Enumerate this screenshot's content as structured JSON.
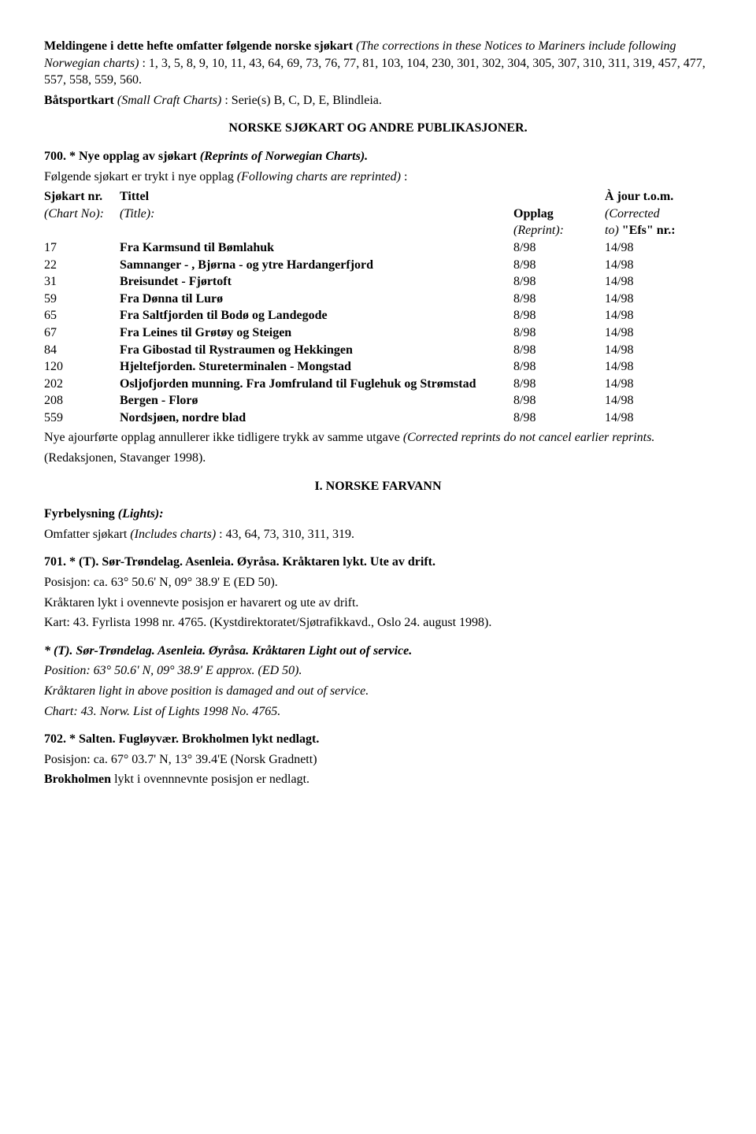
{
  "intro": {
    "lead_bold": "Meldingene i dette hefte omfatter følgende norske sjøkart",
    "lead_italic": "(The corrections in these Notices to Mariners include following Norwegian charts)",
    "chart_numbers": ": 1, 3, 5, 8, 9, 10, 11, 43, 64, 69, 73, 76, 77, 81, 103, 104, 230, 301, 302, 304, 305, 307, 310, 311, 319, 457, 477, 557, 558, 559, 560.",
    "boat_bold": "Båtsportkart",
    "boat_italic": "(Small Craft Charts)",
    "boat_rest": ": Serie(s) B, C, D, E, Blindleia."
  },
  "heading_pub": "NORSKE SJØKART OG ANDRE PUBLIKASJONER.",
  "reprints": {
    "title_bold": "700. * Nye opplag av sjøkart",
    "title_italic": "(Reprints of Norwegian Charts).",
    "sub_line_a": "Følgende sjøkart er trykt i nye opplag ",
    "sub_line_a_italic": "(Following charts are reprinted)",
    "sub_line_a_tail": ":",
    "hdr": {
      "no_bold": "Sjøkart nr.",
      "no_italic": "(Chart No):",
      "title_bold": "Tittel",
      "title_italic": "(Title):",
      "opplag_bold": "Opplag",
      "opplag_italic": "(Reprint):",
      "ajour_bold_l1": "À jour t.o.m.",
      "ajour_italic_l1": "(Corrected",
      "ajour_italic_l2": "to)",
      "ajour_bold_l2": "\"Efs\" nr.:"
    },
    "rows": [
      {
        "no": "17",
        "title": "Fra Karmsund til Bømlahuk",
        "opplag": "8/98",
        "ajour": "14/98"
      },
      {
        "no": "22",
        "title": "Samnanger - , Bjørna - og ytre Hardangerfjord",
        "opplag": "8/98",
        "ajour": "14/98"
      },
      {
        "no": "31",
        "title": "Breisundet - Fjørtoft",
        "opplag": "8/98",
        "ajour": "14/98"
      },
      {
        "no": "59",
        "title": "Fra Dønna til Lurø",
        "opplag": "8/98",
        "ajour": "14/98"
      },
      {
        "no": "65",
        "title": "Fra Saltfjorden til Bodø og Landegode",
        "opplag": "8/98",
        "ajour": "14/98"
      },
      {
        "no": "67",
        "title": "Fra Leines til Grøtøy og Steigen",
        "opplag": "8/98",
        "ajour": "14/98"
      },
      {
        "no": "84",
        "title": "Fra Gibostad til Rystraumen og Hekkingen",
        "opplag": "8/98",
        "ajour": "14/98"
      },
      {
        "no": "120",
        "title": "Hjeltefjorden. Stureterminalen - Mongstad",
        "opplag": "8/98",
        "ajour": "14/98"
      },
      {
        "no": "202",
        "title": "Osljofjorden munning. Fra Jomfruland til Fuglehuk og Strømstad",
        "opplag": "8/98",
        "ajour": "14/98"
      },
      {
        "no": "208",
        "title": "Bergen - Florø",
        "opplag": "8/98",
        "ajour": "14/98"
      },
      {
        "no": "559",
        "title": "Nordsjøen, nordre blad",
        "opplag": "8/98",
        "ajour": "14/98"
      }
    ],
    "footer_a": "Nye ajourførte opplag annullerer ikke tidligere trykk av samme utgave ",
    "footer_a_italic": "(Corrected reprints do not cancel earlier reprints.",
    "footer_b": "(Redaksjonen, Stavanger 1998)."
  },
  "heading_farvann": "I. NORSKE FARVANN",
  "lights": {
    "title_bold": "Fyrbelysning",
    "title_italic": "(Lights):",
    "line_a": "Omfatter sjøkart ",
    "line_a_italic": "(Includes charts)",
    "line_a_tail": ": 43, 64, 73, 310, 311, 319."
  },
  "n701": {
    "title": "701. * (T). Sør-Trøndelag. Asenleia. Øyråsa. Kråktaren lykt. Ute av drift.",
    "l1": "Posisjon: ca. 63° 50.6' N, 09° 38.9' E (ED 50).",
    "l2": "Kråktaren lykt i ovennevte posisjon er havarert og ute av drift.",
    "l3": "Kart: 43. Fyrlista 1998 nr. 4765. (Kystdirektoratet/Sjøtrafikkavd., Oslo 24. august 1998).",
    "en_title": "* (T). Sør-Trøndelag. Asenleia. Øyråsa. Kråktaren Light out of service.",
    "en_l1": "Position: 63° 50.6' N, 09° 38.9' E approx. (ED 50).",
    "en_l2": "Kråktaren light in above position is damaged and out of service.",
    "en_l3": "Chart: 43. Norw. List of Lights 1998 No. 4765."
  },
  "n702": {
    "title": "702.  * Salten. Fugløyvær. Brokholmen lykt nedlagt.",
    "l1": "Posisjon: ca. 67° 03.7' N, 13° 39.4'E (Norsk Gradnett)",
    "l2_bold": "Brokholmen",
    "l2_rest": " lykt i ovennnevnte posisjon er nedlagt."
  }
}
